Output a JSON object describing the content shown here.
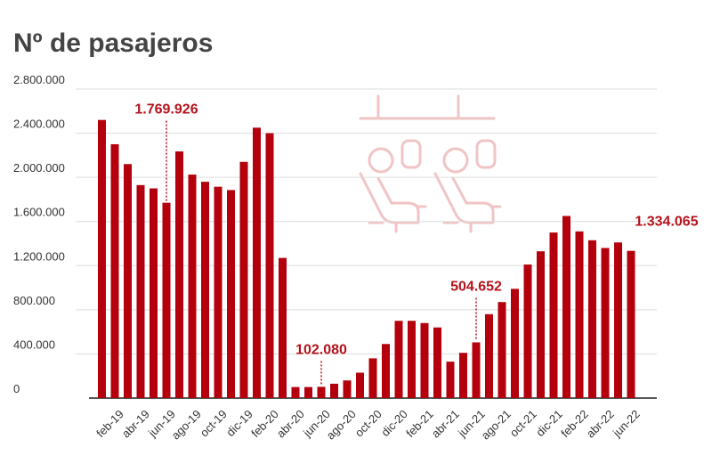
{
  "chart_data": {
    "type": "bar",
    "title": "Nº de pasajeros",
    "categories": [
      null,
      "feb-19",
      null,
      "abr-19",
      null,
      "jun-19",
      null,
      "ago-19",
      null,
      "oct-19",
      null,
      "dic-19",
      null,
      "feb-20",
      null,
      "abr-20",
      null,
      "jun-20",
      null,
      "ago-20",
      null,
      "oct-20",
      null,
      "dic-20",
      null,
      "feb-21",
      null,
      "abr-21",
      null,
      "jun-21",
      null,
      "ago-21",
      null,
      "oct-21",
      null,
      "dic-21",
      null,
      "feb-22",
      null,
      "abr-22",
      null,
      "jun-22"
    ],
    "values": [
      2520000,
      2300000,
      2120000,
      1930000,
      1900000,
      1769926,
      2235000,
      2025000,
      1960000,
      1915000,
      1885000,
      2140000,
      2450000,
      2400000,
      1270000,
      100000,
      100000,
      102080,
      130000,
      160000,
      230000,
      360000,
      490000,
      700000,
      700000,
      680000,
      640000,
      330000,
      410000,
      504652,
      760000,
      870000,
      990000,
      1210000,
      1330000,
      1500000,
      1650000,
      1510000,
      1430000,
      1360000,
      1410000,
      1334065
    ],
    "value_labels": [
      null,
      null,
      null,
      null,
      null,
      "1.769.926",
      null,
      null,
      null,
      null,
      null,
      null,
      null,
      null,
      null,
      null,
      null,
      "102.080",
      null,
      null,
      null,
      null,
      null,
      null,
      null,
      null,
      null,
      null,
      null,
      "504.652",
      null,
      null,
      null,
      null,
      null,
      null,
      null,
      null,
      null,
      null,
      null,
      "1.334.065"
    ],
    "color": "#b3000c",
    "ylim": [
      0,
      2800000
    ],
    "yticks": [
      0,
      {
        "value": 400000,
        "label": "400.000"
      },
      {
        "value": 800000,
        "label": "800.000"
      },
      {
        "value": 1200000,
        "label": "1.200.000"
      },
      {
        "value": 1600000,
        "label": "1.600.000"
      },
      {
        "value": 2000000,
        "label": "2.000.000"
      },
      {
        "value": 2400000,
        "label": "2.400.000"
      },
      {
        "value": 2800000,
        "label": "2.800.000"
      }
    ],
    "grid": true
  }
}
